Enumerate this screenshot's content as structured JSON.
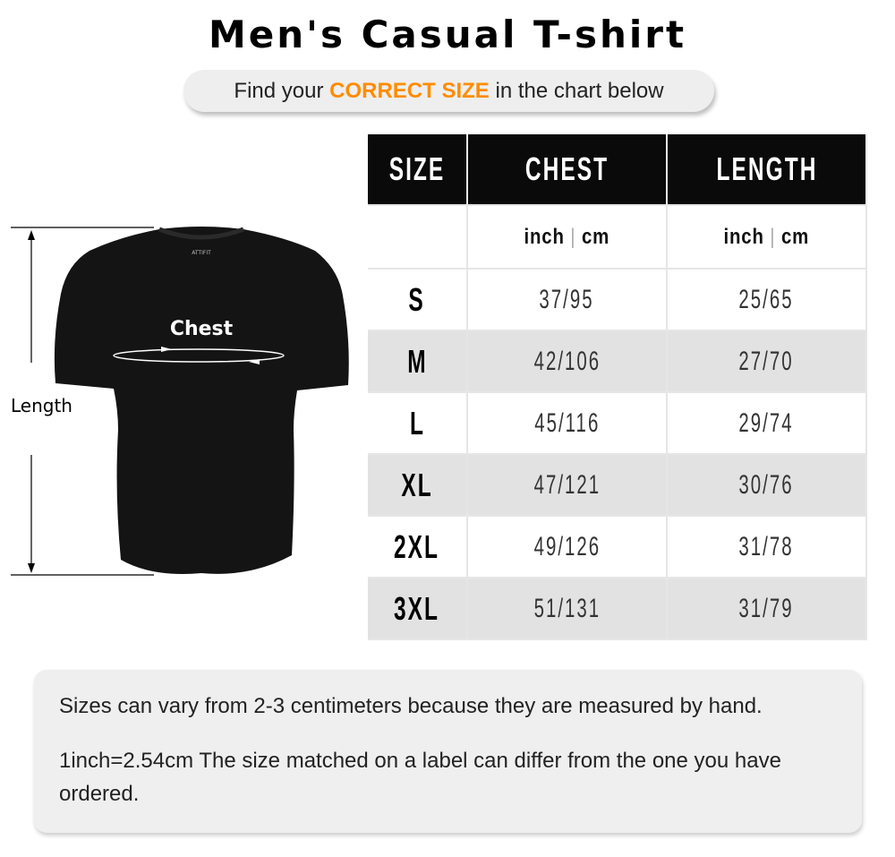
{
  "title": "Men's Casual T-shirt",
  "subtitle": {
    "prefix": "Find your ",
    "highlight": "CORRECT SIZE",
    "suffix": " in the chart below",
    "highlight_color": "#ff8c00"
  },
  "diagram": {
    "chest_label": "Chest",
    "length_label": "Length",
    "brand_tag": "ATTIFIT"
  },
  "table": {
    "headers": [
      "SIZE",
      "CHEST",
      "LENGTH"
    ],
    "units": {
      "chest": {
        "a": "inch",
        "sep": "|",
        "b": "cm"
      },
      "length": {
        "a": "inch",
        "sep": "|",
        "b": "cm"
      }
    },
    "rows": [
      {
        "size": "S",
        "chest": "37/95",
        "length": "25/65"
      },
      {
        "size": "M",
        "chest": "42/106",
        "length": "27/70"
      },
      {
        "size": "L",
        "chest": "45/116",
        "length": "29/74"
      },
      {
        "size": "XL",
        "chest": "47/121",
        "length": "30/76"
      },
      {
        "size": "2XL",
        "chest": "49/126",
        "length": "31/78"
      },
      {
        "size": "3XL",
        "chest": "51/131",
        "length": "31/79"
      }
    ]
  },
  "notes": [
    "Sizes can vary from 2-3 centimeters because they are measured by hand.",
    "1inch=2.54cm The size matched on a label can differ from the one you have ordered."
  ]
}
